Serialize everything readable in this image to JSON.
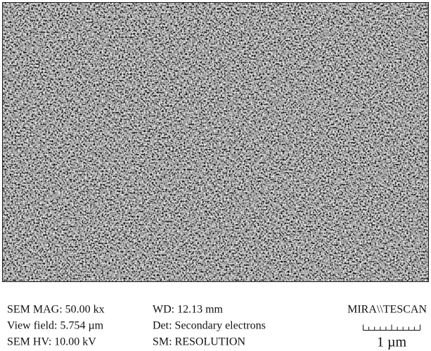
{
  "info": {
    "left": [
      "SEM MAG: 50.00 kx",
      "View field: 5.754 µm",
      "SEM HV: 10.00 kV"
    ],
    "middle": [
      "WD: 12.13 mm",
      "Det: Secondary electrons",
      "SM: RESOLUTION"
    ],
    "brand": "MIRA\\\\TESCAN",
    "scale_label": "1 µm"
  }
}
